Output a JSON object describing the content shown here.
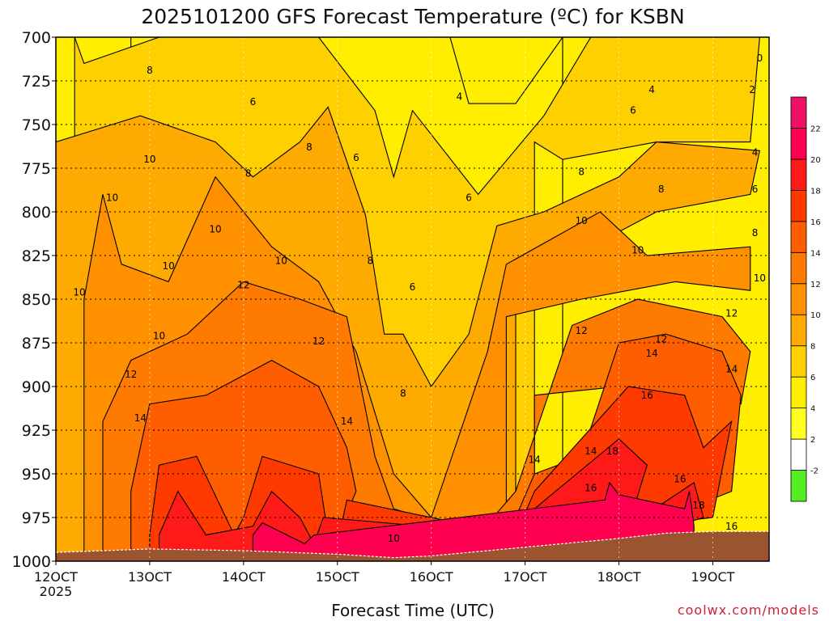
{
  "chart_data": {
    "type": "heatmap",
    "title": "2025101200 GFS Forecast Temperature (ºC) for KSBN",
    "xlabel": "Forecast Time (UTC)",
    "ylabel": "",
    "credit": "coolwx.com/models",
    "y_axis": {
      "unit": "hPa",
      "reversed": true,
      "range": [
        700,
        1000
      ],
      "ticks": [
        {
          "value": 700,
          "label": "700"
        },
        {
          "value": 725,
          "label": "725"
        },
        {
          "value": 750,
          "label": "750"
        },
        {
          "value": 775,
          "label": "775"
        },
        {
          "value": 800,
          "label": "800"
        },
        {
          "value": 825,
          "label": "825"
        },
        {
          "value": 850,
          "label": "850"
        },
        {
          "value": 875,
          "label": "875"
        },
        {
          "value": 900,
          "label": "900"
        },
        {
          "value": 925,
          "label": "925"
        },
        {
          "value": 950,
          "label": "950"
        },
        {
          "value": 975,
          "label": "975"
        },
        {
          "value": 1000,
          "label": "1000"
        }
      ]
    },
    "x_axis": {
      "unit": "day of October 2025",
      "range": [
        12,
        19.6
      ],
      "ticks": [
        {
          "value": 12,
          "label": "12OCT",
          "sub": "2025"
        },
        {
          "value": 13,
          "label": "13OCT"
        },
        {
          "value": 14,
          "label": "14OCT"
        },
        {
          "value": 15,
          "label": "15OCT"
        },
        {
          "value": 16,
          "label": "16OCT"
        },
        {
          "value": 17,
          "label": "17OCT"
        },
        {
          "value": 18,
          "label": "18OCT"
        },
        {
          "value": 19,
          "label": "19OCT"
        }
      ]
    },
    "grid": true,
    "colorbar": {
      "placement": "right",
      "labels": [
        "-2",
        "2",
        "4",
        "6",
        "8",
        "10",
        "12",
        "14",
        "16",
        "18",
        "20",
        "22"
      ],
      "bins": [
        {
          "from": -4,
          "to": -2,
          "color": "#55ee22"
        },
        {
          "from": -2,
          "to": 2,
          "color": "#ffffff"
        },
        {
          "from": 2,
          "to": 4,
          "color": "#ffff22"
        },
        {
          "from": 4,
          "to": 6,
          "color": "#ffee00"
        },
        {
          "from": 6,
          "to": 8,
          "color": "#ffd000"
        },
        {
          "from": 8,
          "to": 10,
          "color": "#ffaa00"
        },
        {
          "from": 10,
          "to": 12,
          "color": "#ff9000"
        },
        {
          "from": 12,
          "to": 14,
          "color": "#ff7a00"
        },
        {
          "from": 14,
          "to": 16,
          "color": "#ff5e00"
        },
        {
          "from": 16,
          "to": 18,
          "color": "#ff3a00"
        },
        {
          "from": 18,
          "to": 20,
          "color": "#ff1a1a"
        },
        {
          "from": 20,
          "to": 22,
          "color": "#ff0050"
        },
        {
          "from": 22,
          "to": 24,
          "color": "#ee1166"
        }
      ]
    },
    "ground_pressure": [
      [
        12,
        995
      ],
      [
        13,
        993
      ],
      [
        14,
        994
      ],
      [
        15,
        996
      ],
      [
        15.6,
        998
      ],
      [
        16,
        997
      ],
      [
        17,
        992
      ],
      [
        18,
        987
      ],
      [
        18.5,
        984
      ],
      [
        19,
        983
      ],
      [
        19.6,
        983
      ]
    ],
    "fields": [
      {
        "level": 4,
        "color": "#ffee00",
        "points": [
          [
            12.8,
            700
          ],
          [
            16.2,
            700
          ],
          [
            16.4,
            738
          ],
          [
            16.9,
            738
          ],
          [
            17.4,
            700
          ]
        ]
      },
      {
        "level": 6,
        "color": "#ffd000",
        "points": [
          [
            12.2,
            700
          ],
          [
            12.3,
            715
          ],
          [
            13.1,
            700
          ],
          [
            14.8,
            700
          ],
          [
            15.4,
            742
          ],
          [
            15.6,
            780
          ],
          [
            15.8,
            742
          ],
          [
            16.5,
            790
          ],
          [
            17.2,
            745
          ],
          [
            17.7,
            700
          ],
          [
            19.5,
            700
          ],
          [
            19.4,
            760
          ],
          [
            18.4,
            760
          ],
          [
            17.4,
            770
          ],
          [
            17.1,
            760
          ]
        ]
      },
      {
        "level": 8,
        "color": "#ffaa00",
        "points": [
          [
            12,
            760
          ],
          [
            12.9,
            745
          ],
          [
            13.7,
            760
          ],
          [
            14.1,
            780
          ],
          [
            14.6,
            760
          ],
          [
            14.9,
            740
          ],
          [
            15.3,
            802
          ],
          [
            15.5,
            870
          ],
          [
            15.7,
            870
          ],
          [
            16.0,
            900
          ],
          [
            16.4,
            870
          ],
          [
            16.7,
            808
          ],
          [
            17.2,
            800
          ],
          [
            18.0,
            780
          ],
          [
            18.4,
            760
          ],
          [
            19.5,
            765
          ],
          [
            19.4,
            790
          ],
          [
            18.4,
            800
          ],
          [
            17.7,
            820
          ],
          [
            16.9,
            850
          ]
        ]
      },
      {
        "level": 10,
        "color": "#ff9000",
        "points": [
          [
            12.3,
            850
          ],
          [
            12.5,
            790
          ],
          [
            12.7,
            830
          ],
          [
            13.2,
            840
          ],
          [
            13.7,
            780
          ],
          [
            14.3,
            820
          ],
          [
            14.8,
            840
          ],
          [
            15.2,
            880
          ],
          [
            15.6,
            950
          ],
          [
            16.0,
            975
          ],
          [
            16.6,
            880
          ],
          [
            16.8,
            830
          ],
          [
            17.8,
            800
          ],
          [
            18.3,
            825
          ],
          [
            19.4,
            820
          ],
          [
            19.4,
            845
          ],
          [
            18.6,
            840
          ],
          [
            17.6,
            850
          ],
          [
            16.8,
            860
          ]
        ]
      },
      {
        "level": 12,
        "color": "#ff7a00",
        "points": [
          [
            12.5,
            920
          ],
          [
            12.8,
            885
          ],
          [
            13.4,
            870
          ],
          [
            14.0,
            840
          ],
          [
            14.6,
            850
          ],
          [
            15.1,
            860
          ],
          [
            15.4,
            940
          ],
          [
            15.6,
            970
          ],
          [
            16.5,
            985
          ],
          [
            16.9,
            960
          ],
          [
            17.5,
            865
          ],
          [
            18.2,
            850
          ],
          [
            19.1,
            860
          ],
          [
            19.4,
            880
          ],
          [
            19.3,
            910
          ],
          [
            18.8,
            900
          ],
          [
            18.0,
            900
          ],
          [
            17.1,
            905
          ]
        ]
      },
      {
        "level": 14,
        "color": "#ff5e00",
        "points": [
          [
            12.8,
            960
          ],
          [
            13.0,
            910
          ],
          [
            13.6,
            905
          ],
          [
            14.3,
            885
          ],
          [
            14.8,
            900
          ],
          [
            15.1,
            935
          ],
          [
            15.2,
            960
          ],
          [
            15.0,
            985
          ],
          [
            13.6,
            990
          ],
          [
            16.9,
            975
          ],
          [
            17.1,
            950
          ],
          [
            17.6,
            940
          ],
          [
            18.0,
            875
          ],
          [
            18.5,
            870
          ],
          [
            19.1,
            880
          ],
          [
            19.3,
            905
          ],
          [
            19.2,
            960
          ],
          [
            18.5,
            975
          ],
          [
            17.8,
            985
          ]
        ]
      },
      {
        "level": 16,
        "color": "#ff3a00",
        "points": [
          [
            13.0,
            985
          ],
          [
            13.1,
            945
          ],
          [
            13.5,
            940
          ],
          [
            13.9,
            985
          ],
          [
            14.0,
            975
          ],
          [
            14.2,
            940
          ],
          [
            14.8,
            950
          ],
          [
            14.9,
            985
          ],
          [
            15.0,
            990
          ],
          [
            15.1,
            965
          ],
          [
            16.9,
            985
          ],
          [
            17.1,
            960
          ],
          [
            18.1,
            900
          ],
          [
            18.7,
            905
          ],
          [
            18.9,
            935
          ],
          [
            19.2,
            920
          ],
          [
            19.0,
            975
          ],
          [
            18.2,
            980
          ]
        ]
      },
      {
        "level": 18,
        "color": "#ff1a1a",
        "points": [
          [
            13.1,
            985
          ],
          [
            13.3,
            960
          ],
          [
            13.6,
            985
          ],
          [
            14.1,
            980
          ],
          [
            14.3,
            960
          ],
          [
            14.6,
            975
          ],
          [
            14.75,
            990
          ],
          [
            14.85,
            975
          ],
          [
            17.0,
            985
          ],
          [
            17.1,
            970
          ],
          [
            18.0,
            930
          ],
          [
            18.3,
            945
          ],
          [
            18.1,
            980
          ],
          [
            18.8,
            955
          ],
          [
            18.9,
            975
          ],
          [
            18.6,
            980
          ]
        ]
      },
      {
        "level": 20,
        "color": "#ff0050",
        "points": [
          [
            14.1,
            985
          ],
          [
            14.2,
            978
          ],
          [
            14.65,
            990
          ],
          [
            14.75,
            985
          ],
          [
            17.85,
            965
          ],
          [
            17.9,
            955
          ],
          [
            18.0,
            962
          ],
          [
            18.7,
            970
          ],
          [
            18.75,
            960
          ],
          [
            18.8,
            980
          ]
        ]
      }
    ],
    "contour_labels": [
      {
        "x": 13.0,
        "p": 719,
        "text": "8"
      },
      {
        "x": 14.1,
        "p": 737,
        "text": "6"
      },
      {
        "x": 12.6,
        "p": 792,
        "text": "10"
      },
      {
        "x": 13.0,
        "p": 770,
        "text": "10"
      },
      {
        "x": 12.25,
        "p": 846,
        "text": "10"
      },
      {
        "x": 13.7,
        "p": 810,
        "text": "10"
      },
      {
        "x": 13.2,
        "p": 831,
        "text": "10"
      },
      {
        "x": 14.4,
        "p": 828,
        "text": "10"
      },
      {
        "x": 14.05,
        "p": 778,
        "text": "8"
      },
      {
        "x": 14.7,
        "p": 763,
        "text": "8"
      },
      {
        "x": 15.2,
        "p": 769,
        "text": "6"
      },
      {
        "x": 15.35,
        "p": 828,
        "text": "8"
      },
      {
        "x": 15.8,
        "p": 843,
        "text": "6"
      },
      {
        "x": 16.3,
        "p": 734,
        "text": "4"
      },
      {
        "x": 16.4,
        "p": 792,
        "text": "6"
      },
      {
        "x": 14.0,
        "p": 842,
        "text": "12"
      },
      {
        "x": 13.1,
        "p": 871,
        "text": "10"
      },
      {
        "x": 12.8,
        "p": 893,
        "text": "12"
      },
      {
        "x": 14.8,
        "p": 874,
        "text": "12"
      },
      {
        "x": 12.9,
        "p": 918,
        "text": "14"
      },
      {
        "x": 15.1,
        "p": 920,
        "text": "14"
      },
      {
        "x": 15.7,
        "p": 904,
        "text": "8"
      },
      {
        "x": 15.6,
        "p": 987,
        "text": "10"
      },
      {
        "x": 17.1,
        "p": 942,
        "text": "14"
      },
      {
        "x": 17.6,
        "p": 805,
        "text": "10"
      },
      {
        "x": 17.6,
        "p": 777,
        "text": "8"
      },
      {
        "x": 17.6,
        "p": 868,
        "text": "12"
      },
      {
        "x": 18.2,
        "p": 822,
        "text": "10"
      },
      {
        "x": 18.45,
        "p": 787,
        "text": "8"
      },
      {
        "x": 18.15,
        "p": 742,
        "text": "6"
      },
      {
        "x": 18.35,
        "p": 730,
        "text": "4"
      },
      {
        "x": 18.45,
        "p": 873,
        "text": "12"
      },
      {
        "x": 18.35,
        "p": 881,
        "text": "14"
      },
      {
        "x": 18.3,
        "p": 905,
        "text": "16"
      },
      {
        "x": 17.7,
        "p": 937,
        "text": "14"
      },
      {
        "x": 17.93,
        "p": 937,
        "text": "18"
      },
      {
        "x": 17.7,
        "p": 958,
        "text": "16"
      },
      {
        "x": 18.65,
        "p": 953,
        "text": "16"
      },
      {
        "x": 18.85,
        "p": 968,
        "text": "18"
      },
      {
        "x": 19.2,
        "p": 980,
        "text": "16"
      },
      {
        "x": 19.2,
        "p": 858,
        "text": "12"
      },
      {
        "x": 19.2,
        "p": 890,
        "text": "14"
      },
      {
        "x": 19.45,
        "p": 766,
        "text": "4"
      },
      {
        "x": 19.45,
        "p": 787,
        "text": "6"
      },
      {
        "x": 19.45,
        "p": 812,
        "text": "8"
      },
      {
        "x": 19.5,
        "p": 838,
        "text": "10"
      },
      {
        "x": 19.5,
        "p": 712,
        "text": "0"
      },
      {
        "x": 19.42,
        "p": 730,
        "text": "2"
      }
    ]
  }
}
